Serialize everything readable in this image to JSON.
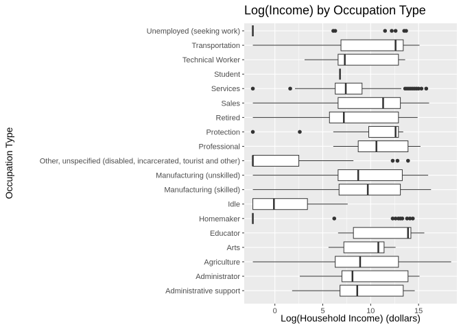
{
  "chart_data": {
    "type": "boxplot",
    "orientation": "horizontal",
    "title": "Log(Income) by Occupation Type",
    "xlabel": "Log(Household Income) (dollars)",
    "ylabel": "Occupation Type",
    "xlim": [
      -3.2,
      19
    ],
    "xticks": [
      0,
      5,
      10,
      15
    ],
    "xtick_labels": [
      "0",
      "5",
      "10",
      "15"
    ],
    "grid": true,
    "colors": {
      "panel": "#ebebeb",
      "grid_major": "#ffffff",
      "box_fill": "#ffffff",
      "box_line": "#333333",
      "outlier": "#333333"
    },
    "categories": [
      "Unemployed (seeking work)",
      "Transportation",
      "Technical Worker",
      "Student",
      "Services",
      "Sales",
      "Retired",
      "Protection",
      "Professional",
      "Other, unspecified (disabled, incarcerated, tourist and other)",
      "Manufacturing (unskilled)",
      "Manufacturing (skilled)",
      "Idle",
      "Homemaker",
      "Educator",
      "Arts",
      "Agriculture",
      "Administrator",
      "Administrative support"
    ],
    "boxes": [
      {
        "category": "Unemployed (seeking work)",
        "whisker_low": -2.3,
        "q1": -2.3,
        "median": -2.3,
        "q3": -2.3,
        "whisker_high": -2.3,
        "outliers": [
          6.1,
          6.3,
          11.5,
          12.2,
          12.6,
          13.5,
          13.7
        ]
      },
      {
        "category": "Transportation",
        "whisker_low": -2.3,
        "q1": 6.9,
        "median": 12.6,
        "q3": 13.4,
        "whisker_high": 15.1,
        "outliers": []
      },
      {
        "category": "Technical Worker",
        "whisker_low": 3.1,
        "q1": 6.6,
        "median": 7.3,
        "q3": 12.9,
        "whisker_high": 13.6,
        "outliers": []
      },
      {
        "category": "Student",
        "whisker_low": 6.8,
        "q1": 6.8,
        "median": 6.8,
        "q3": 6.8,
        "whisker_high": 6.8,
        "outliers": []
      },
      {
        "category": "Services",
        "whisker_low": 2.1,
        "q1": 6.3,
        "median": 7.4,
        "q3": 9.1,
        "whisker_high": 13.2,
        "outliers": [
          -2.3,
          1.6,
          13.6,
          13.8,
          14.0,
          14.2,
          14.4,
          14.6,
          14.8,
          15.0,
          15.3,
          15.8
        ]
      },
      {
        "category": "Sales",
        "whisker_low": -2.3,
        "q1": 6.6,
        "median": 11.3,
        "q3": 13.1,
        "whisker_high": 16.1,
        "outliers": []
      },
      {
        "category": "Retired",
        "whisker_low": -2.3,
        "q1": 5.7,
        "median": 7.2,
        "q3": 12.9,
        "whisker_high": 14.9,
        "outliers": []
      },
      {
        "category": "Protection",
        "whisker_low": 6.1,
        "q1": 9.8,
        "median": 12.6,
        "q3": 12.9,
        "whisker_high": 13.4,
        "outliers": [
          -2.3,
          2.6
        ]
      },
      {
        "category": "Professional",
        "whisker_low": 6.1,
        "q1": 8.7,
        "median": 10.6,
        "q3": 13.9,
        "whisker_high": 15.2,
        "outliers": []
      },
      {
        "category": "Other, unspecified (disabled, incarcerated, tourist and other)",
        "whisker_low": -2.3,
        "q1": -2.3,
        "median": -2.3,
        "q3": 2.5,
        "whisker_high": 8.2,
        "outliers": [
          12.3,
          12.8,
          13.9
        ]
      },
      {
        "category": "Manufacturing (unskilled)",
        "whisker_low": -2.3,
        "q1": 6.6,
        "median": 8.7,
        "q3": 13.3,
        "whisker_high": 16.0,
        "outliers": []
      },
      {
        "category": "Manufacturing (skilled)",
        "whisker_low": -2.3,
        "q1": 6.7,
        "median": 9.7,
        "q3": 13.1,
        "whisker_high": 16.3,
        "outliers": []
      },
      {
        "category": "Idle",
        "whisker_low": -2.3,
        "q1": -2.3,
        "median": -0.1,
        "q3": 3.4,
        "whisker_high": 7.6,
        "outliers": []
      },
      {
        "category": "Homemaker",
        "whisker_low": -2.3,
        "q1": -2.3,
        "median": -2.3,
        "q3": -2.3,
        "whisker_high": -2.3,
        "outliers": [
          6.2,
          12.3,
          12.6,
          12.9,
          13.1,
          13.3,
          13.8,
          14.1,
          14.4
        ]
      },
      {
        "category": "Educator",
        "whisker_low": 6.6,
        "q1": 8.2,
        "median": 13.9,
        "q3": 14.2,
        "whisker_high": 15.6,
        "outliers": []
      },
      {
        "category": "Arts",
        "whisker_low": 5.6,
        "q1": 7.2,
        "median": 10.8,
        "q3": 11.4,
        "whisker_high": 12.6,
        "outliers": []
      },
      {
        "category": "Agriculture",
        "whisker_low": -2.3,
        "q1": 6.3,
        "median": 8.9,
        "q3": 12.9,
        "whisker_high": 18.4,
        "outliers": []
      },
      {
        "category": "Administrator",
        "whisker_low": 2.6,
        "q1": 7.0,
        "median": 8.1,
        "q3": 13.9,
        "whisker_high": 15.1,
        "outliers": []
      },
      {
        "category": "Administrative support",
        "whisker_low": 1.8,
        "q1": 6.8,
        "median": 8.6,
        "q3": 13.4,
        "whisker_high": 14.6,
        "outliers": []
      }
    ]
  }
}
